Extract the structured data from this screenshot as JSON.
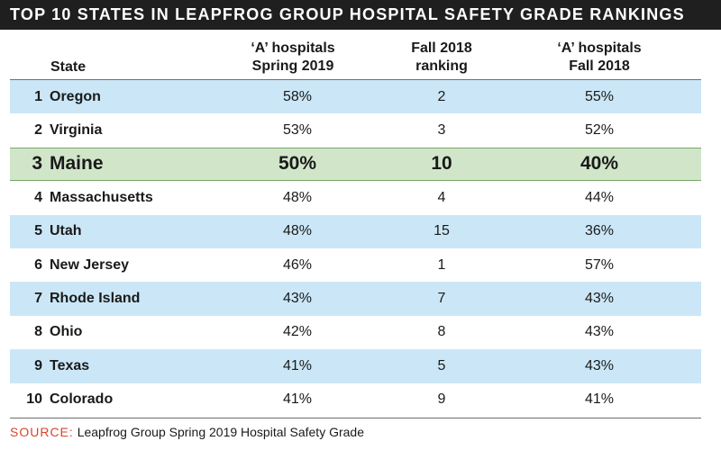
{
  "title": "TOP 10 STATES IN LEAPFROG GROUP HOSPITAL SAFETY GRADE RANKINGS",
  "colors": {
    "title_bg": "#1f1f1f",
    "band": "#cbe7f7",
    "highlight": "#d1e6c9",
    "source_label": "#d9432c"
  },
  "source": {
    "label": "SOURCE:",
    "text": "Leapfrog Group Spring 2019 Hospital Safety Grade"
  },
  "chart_data": {
    "type": "table",
    "title": "TOP 10 STATES IN LEAPFROG GROUP HOSPITAL SAFETY GRADE RANKINGS",
    "columns": [
      {
        "line1": "State",
        "line2": ""
      },
      {
        "line1": "‘A’ hospitals",
        "line2": "Spring 2019"
      },
      {
        "line1": "Fall 2018",
        "line2": "ranking"
      },
      {
        "line1": "‘A’ hospitals",
        "line2": "Fall 2018"
      }
    ],
    "rows": [
      {
        "rank": "1",
        "state": "Oregon",
        "a_spring_2019": "58%",
        "fall_2018_ranking": "2",
        "a_fall_2018": "55%"
      },
      {
        "rank": "2",
        "state": "Virginia",
        "a_spring_2019": "53%",
        "fall_2018_ranking": "3",
        "a_fall_2018": "52%"
      },
      {
        "rank": "3",
        "state": "Maine",
        "a_spring_2019": "50%",
        "fall_2018_ranking": "10",
        "a_fall_2018": "40%",
        "highlight": true
      },
      {
        "rank": "4",
        "state": "Massachusetts",
        "a_spring_2019": "48%",
        "fall_2018_ranking": "4",
        "a_fall_2018": "44%"
      },
      {
        "rank": "5",
        "state": "Utah",
        "a_spring_2019": "48%",
        "fall_2018_ranking": "15",
        "a_fall_2018": "36%"
      },
      {
        "rank": "6",
        "state": "New Jersey",
        "a_spring_2019": "46%",
        "fall_2018_ranking": "1",
        "a_fall_2018": "57%"
      },
      {
        "rank": "7",
        "state": "Rhode Island",
        "a_spring_2019": "43%",
        "fall_2018_ranking": "7",
        "a_fall_2018": "43%"
      },
      {
        "rank": "8",
        "state": "Ohio",
        "a_spring_2019": "42%",
        "fall_2018_ranking": "8",
        "a_fall_2018": "43%"
      },
      {
        "rank": "9",
        "state": "Texas",
        "a_spring_2019": "41%",
        "fall_2018_ranking": "5",
        "a_fall_2018": "43%"
      },
      {
        "rank": "10",
        "state": "Colorado",
        "a_spring_2019": "41%",
        "fall_2018_ranking": "9",
        "a_fall_2018": "41%"
      }
    ]
  }
}
